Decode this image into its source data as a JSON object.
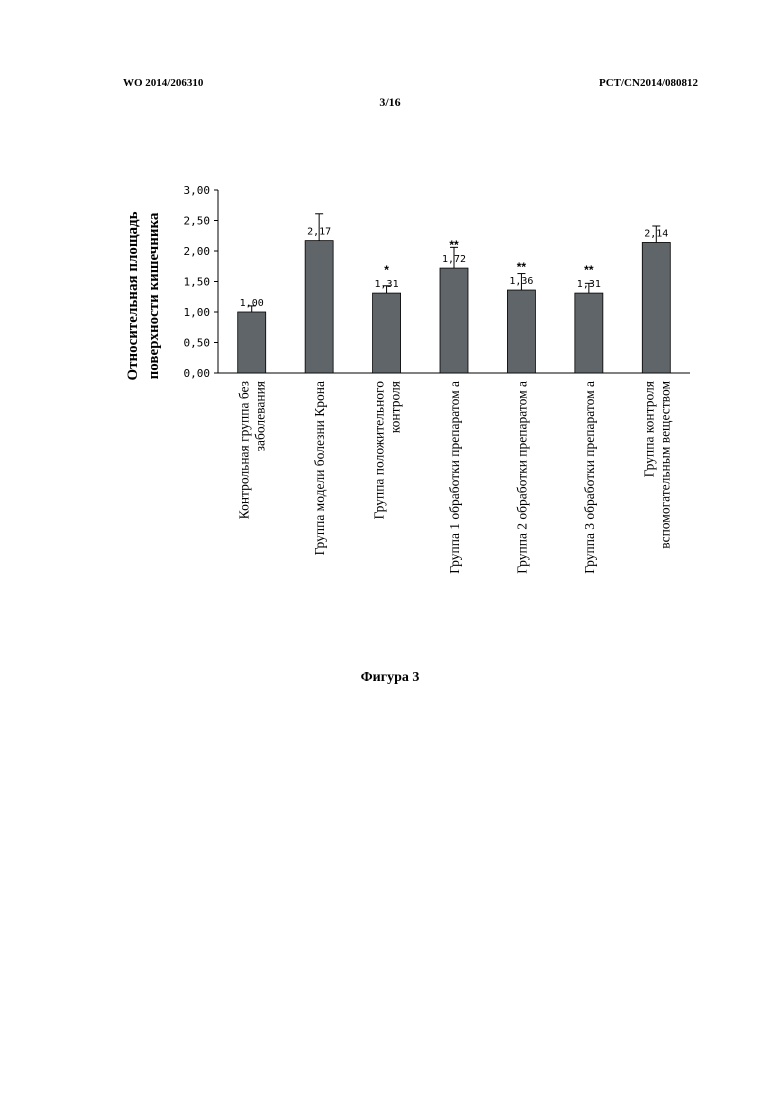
{
  "header": {
    "left": "WO 2014/206310",
    "right": "PCT/CN2014/080812",
    "page": "3/16"
  },
  "caption": "Фигура 3",
  "chart_data": {
    "type": "bar",
    "ylabel_line1": "Относительная площадь",
    "ylabel_line2": "поверхности кишечника",
    "ylim": [
      0,
      3
    ],
    "yticks": [
      "0,00",
      "0,50",
      "1,00",
      "1,50",
      "2,00",
      "2,50",
      "3,00"
    ],
    "categories": [
      [
        "Контрольная группа без",
        "заболевания"
      ],
      [
        "Группа модели болезни Крона"
      ],
      [
        "Группа положительного",
        "контроля"
      ],
      [
        "Группа 1 обработки препаратом а"
      ],
      [
        "Группа 2 обработки препаратом а"
      ],
      [
        "Группа 3 обработки препаратом а"
      ],
      [
        "Группа контроля",
        "вспомогательным веществом"
      ]
    ],
    "values": [
      1.0,
      2.17,
      1.31,
      1.72,
      1.36,
      1.31,
      2.14
    ],
    "errors": [
      0.1,
      0.44,
      0.12,
      0.34,
      0.27,
      0.16,
      0.27
    ],
    "value_labels": [
      "1,00",
      "2,17",
      "1,31",
      "1,72",
      "1,36",
      "1,31",
      "2,14"
    ],
    "significance": [
      "",
      "",
      "*",
      "**",
      "**",
      "**",
      ""
    ],
    "bar_color": "#5f6568",
    "grid": false
  }
}
